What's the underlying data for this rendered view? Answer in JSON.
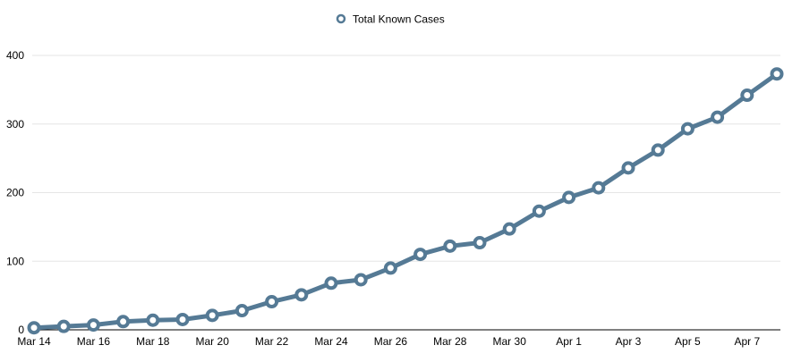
{
  "chart_data": {
    "type": "line",
    "title": "",
    "xlabel": "",
    "ylabel": "",
    "ylim": [
      0,
      400
    ],
    "yticks": [
      "0",
      "100",
      "200",
      "300",
      "400"
    ],
    "grid": true,
    "legend": {
      "position": "top-center",
      "entries": [
        "Total Known Cases"
      ]
    },
    "x_tick_labels": [
      "Mar 14",
      "Mar 16",
      "Mar 18",
      "Mar 20",
      "Mar 22",
      "Mar 24",
      "Mar 26",
      "Mar 28",
      "Mar 30",
      "Apr 1",
      "Apr 3",
      "Apr 5",
      "Apr 7"
    ],
    "categories": [
      "Mar 14",
      "Mar 15",
      "Mar 16",
      "Mar 17",
      "Mar 18",
      "Mar 19",
      "Mar 20",
      "Mar 21",
      "Mar 22",
      "Mar 23",
      "Mar 24",
      "Mar 25",
      "Mar 26",
      "Mar 27",
      "Mar 28",
      "Mar 29",
      "Mar 30",
      "Mar 31",
      "Apr 1",
      "Apr 2",
      "Apr 3",
      "Apr 4",
      "Apr 5",
      "Apr 6",
      "Apr 7",
      "Apr 8"
    ],
    "series": [
      {
        "name": "Total Known Cases",
        "color": "#557a95",
        "values": [
          3,
          5,
          7,
          12,
          14,
          15,
          21,
          28,
          41,
          51,
          68,
          73,
          90,
          110,
          122,
          127,
          147,
          173,
          193,
          207,
          236,
          262,
          293,
          310,
          342,
          373
        ]
      }
    ]
  }
}
